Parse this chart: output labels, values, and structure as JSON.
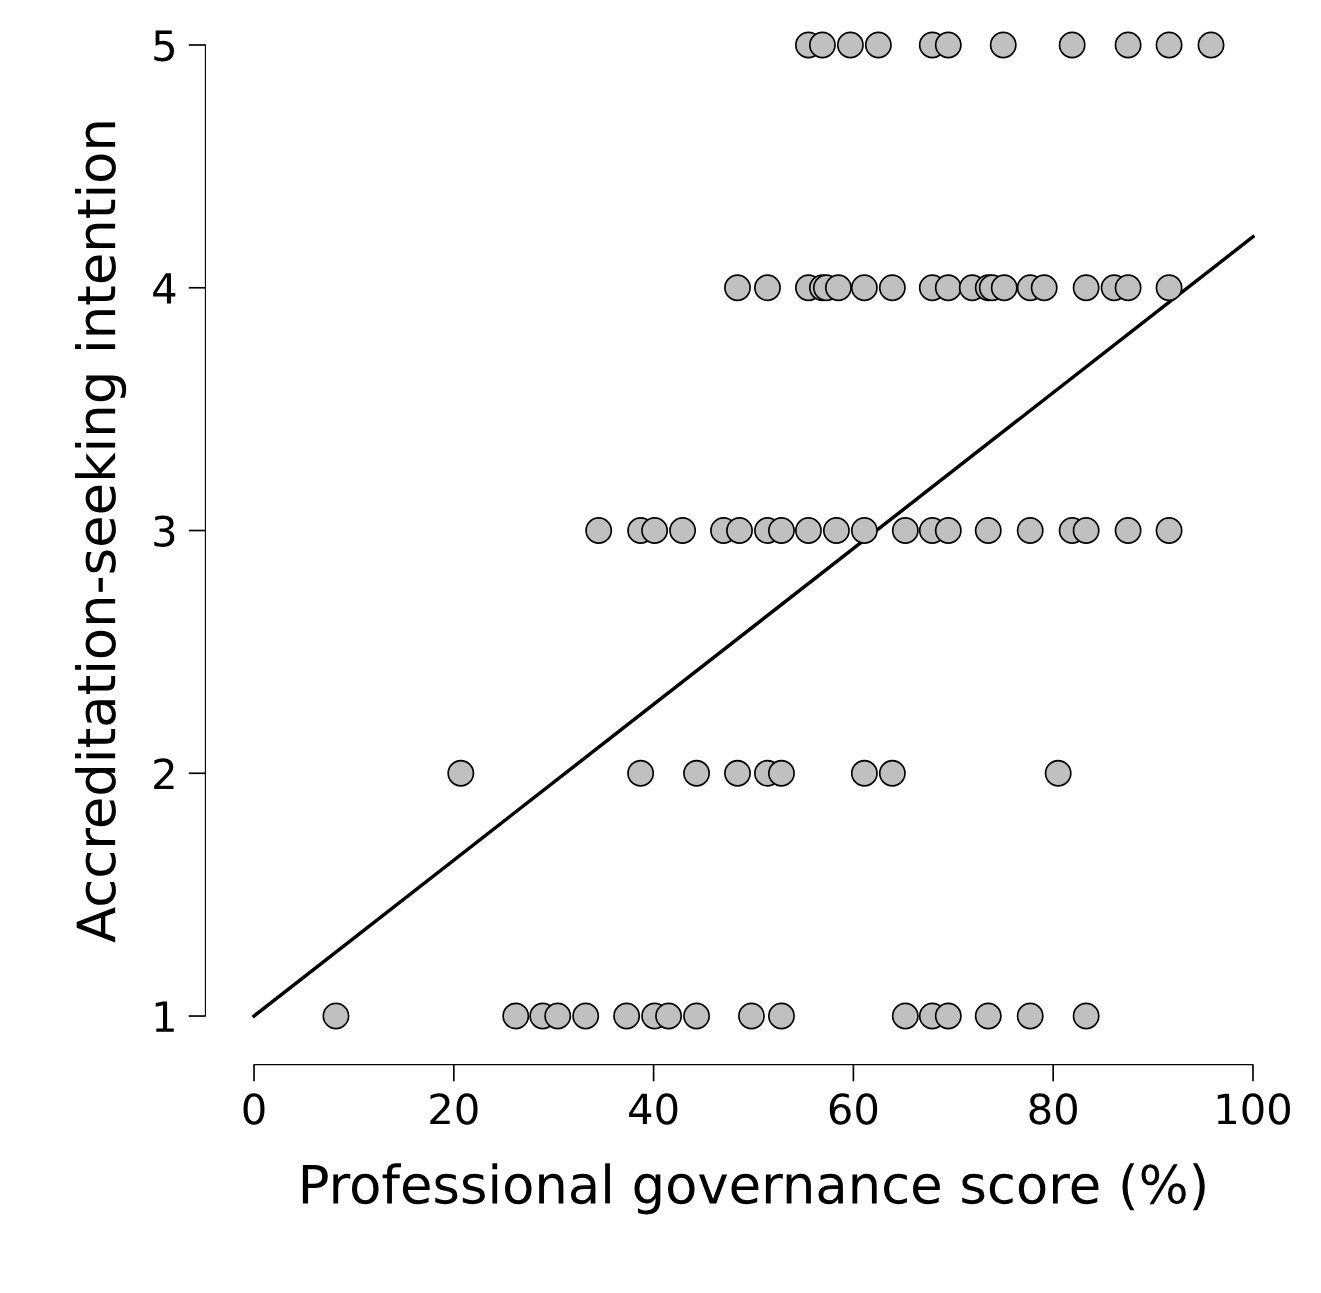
{
  "chart_data": {
    "type": "scatter",
    "xlabel": "Professional governance score (%)",
    "ylabel": "Accreditation-seeking intention",
    "xlim": [
      0,
      100
    ],
    "ylim": [
      1,
      5
    ],
    "xticks": [
      0,
      20,
      40,
      60,
      80,
      100
    ],
    "yticks": [
      1,
      2,
      3,
      4,
      5
    ],
    "grid": false,
    "legend": false,
    "marker": "circle",
    "series": [
      {
        "color": "#c0c0c0",
        "x": [
          55.5,
          56.9,
          59.7,
          62.5,
          67.9,
          69.5,
          75.0,
          81.9,
          87.5,
          91.6,
          95.8,
          48.4,
          51.4,
          55.5,
          56.9,
          57.3,
          58.5,
          61.1,
          63.9,
          67.9,
          69.5,
          71.9,
          73.5,
          73.9,
          75.1,
          77.7,
          79.1,
          83.3,
          86.1,
          87.5,
          91.6,
          34.5,
          38.7,
          40.1,
          42.9,
          47.0,
          48.6,
          51.4,
          52.8,
          55.5,
          58.3,
          61.1,
          65.2,
          67.9,
          69.5,
          73.5,
          77.7,
          81.9,
          83.3,
          87.5,
          91.6,
          20.7,
          38.7,
          44.3,
          48.4,
          51.4,
          52.8,
          61.1,
          63.9,
          80.5,
          8.2,
          26.2,
          28.9,
          30.4,
          33.2,
          37.3,
          40.1,
          41.5,
          44.3,
          49.8,
          52.8,
          65.2,
          67.9,
          69.5,
          73.5,
          77.7,
          83.3
        ],
        "values": [
          5,
          5,
          5,
          5,
          5,
          5,
          5,
          5,
          5,
          5,
          5,
          4,
          4,
          4,
          4,
          4,
          4,
          4,
          4,
          4,
          4,
          4,
          4,
          4,
          4,
          4,
          4,
          4,
          4,
          4,
          4,
          3,
          3,
          3,
          3,
          3,
          3,
          3,
          3,
          3,
          3,
          3,
          3,
          3,
          3,
          3,
          3,
          3,
          3,
          3,
          3,
          2,
          2,
          2,
          2,
          2,
          2,
          2,
          2,
          2,
          1,
          1,
          1,
          1,
          1,
          1,
          1,
          1,
          1,
          1,
          1,
          1,
          1,
          1,
          1,
          1,
          1
        ]
      },
      {
        "type": "line",
        "marker": "none",
        "color": "#000000",
        "x": [
          0,
          100
        ],
        "values": [
          1.0,
          4.21
        ]
      }
    ]
  }
}
